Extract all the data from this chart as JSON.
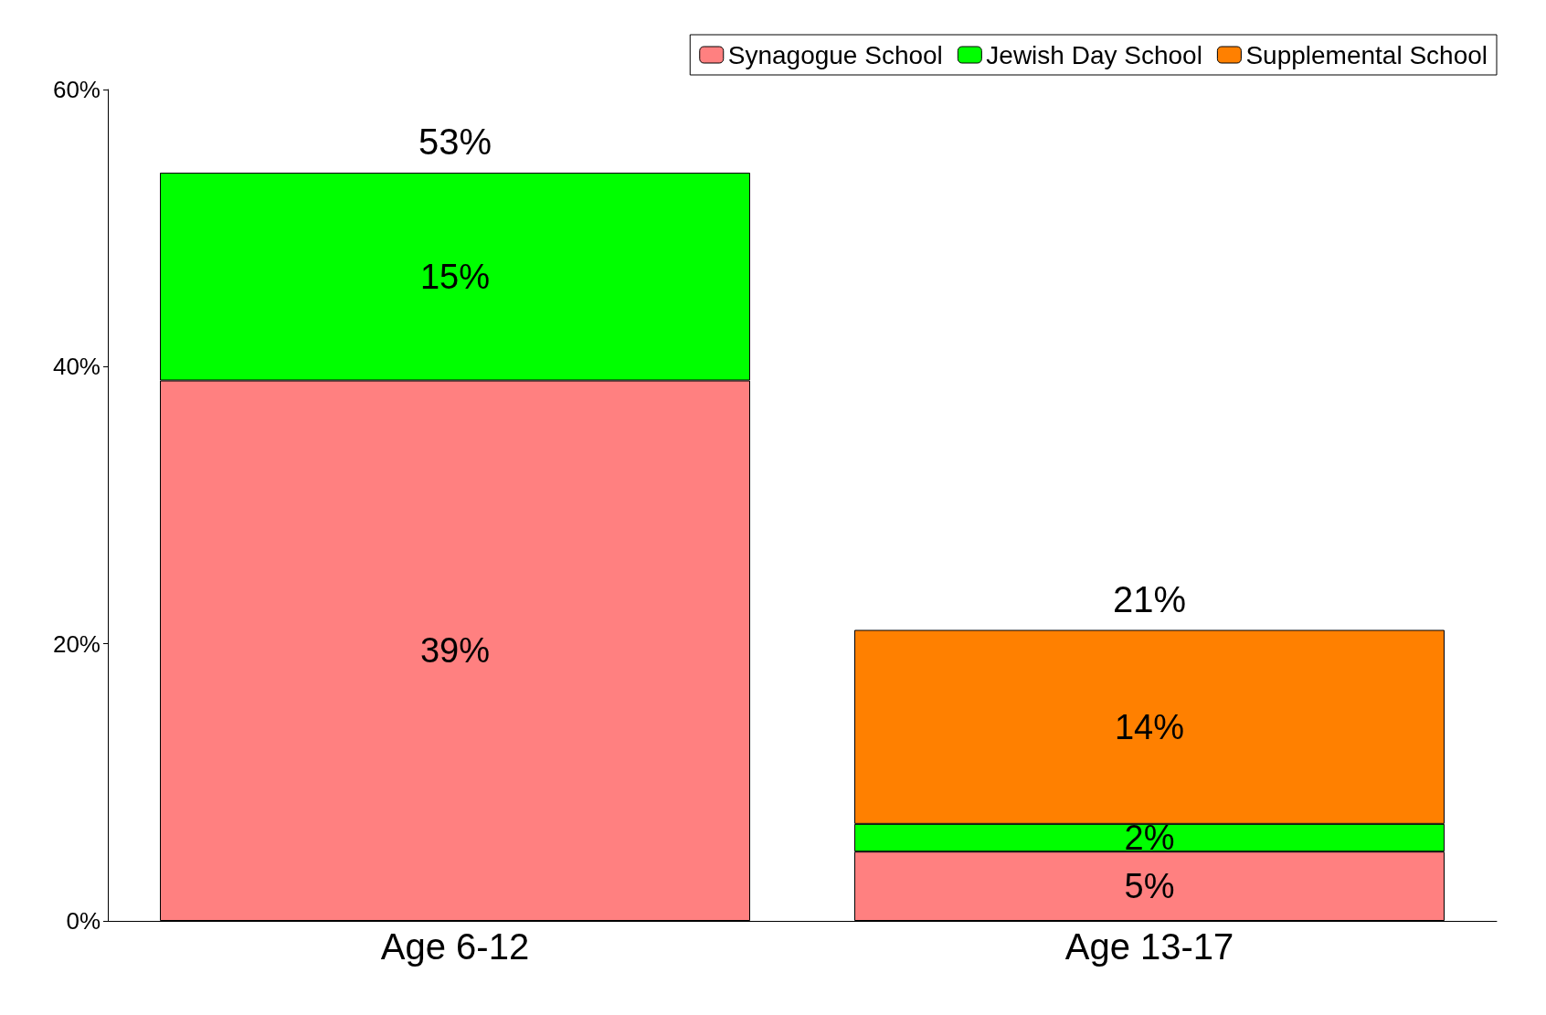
{
  "chart_data": {
    "type": "bar",
    "stacked": true,
    "categories": [
      "Age 6-12",
      "Age 13-17"
    ],
    "series": [
      {
        "name": "Synagogue School",
        "color": "#ff8080",
        "values": [
          39,
          5
        ],
        "value_labels": [
          "39%",
          "5%"
        ]
      },
      {
        "name": "Jewish Day School",
        "color": "#00ff00",
        "values": [
          15,
          2
        ],
        "value_labels": [
          "15%",
          "2%"
        ]
      },
      {
        "name": "Supplemental School",
        "color": "#ff8000",
        "values": [
          null,
          14
        ],
        "value_labels": [
          null,
          "14%"
        ]
      }
    ],
    "totals": [
      "53%",
      "21%"
    ],
    "ylim": [
      0,
      60
    ],
    "yticks": [
      {
        "value": 0,
        "label": "0%"
      },
      {
        "value": 20,
        "label": "20%"
      },
      {
        "value": 40,
        "label": "40%"
      },
      {
        "value": 60,
        "label": "60%"
      }
    ],
    "grid": false,
    "legend": "top right"
  }
}
